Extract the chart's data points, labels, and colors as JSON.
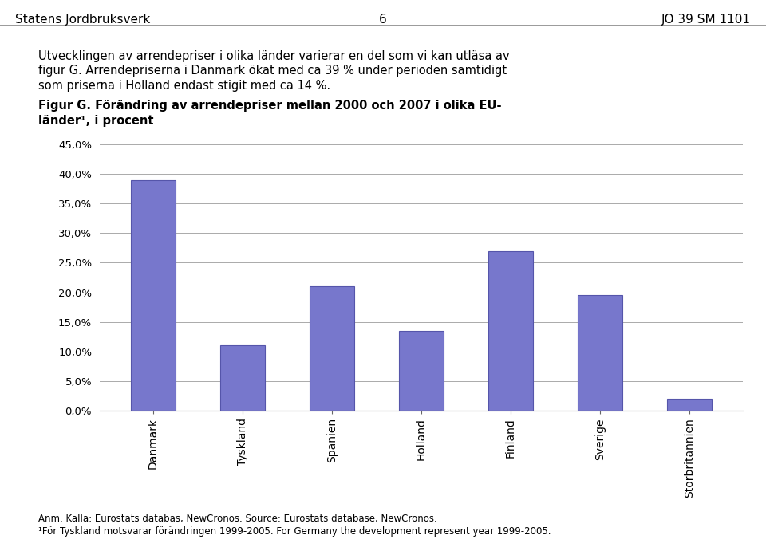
{
  "categories": [
    "Danmark",
    "Tyskland",
    "Spanien",
    "Holland",
    "Finland",
    "Sverige",
    "Storbritannien"
  ],
  "values": [
    0.39,
    0.11,
    0.21,
    0.135,
    0.27,
    0.195,
    0.02
  ],
  "bar_color": "#7777cc",
  "bar_edgecolor": "#5555aa",
  "ylim": [
    0,
    0.45
  ],
  "yticks": [
    0.0,
    0.05,
    0.1,
    0.15,
    0.2,
    0.25,
    0.3,
    0.35,
    0.4,
    0.45
  ],
  "ytick_labels": [
    "0,0%",
    "5,0%",
    "10,0%",
    "15,0%",
    "20,0%",
    "25,0%",
    "30,0%",
    "35,0%",
    "40,0%",
    "45,0%"
  ],
  "header_left": "Statens Jordbruksverk",
  "header_center": "6",
  "header_right": "JO 39 SM 1101",
  "body_text_line1": "Utvecklingen av arrendepriser i olika länder varierar en del som vi kan utläsa av",
  "body_text_line2": "figur G. Arrendepriserna i Danmark ökat med ca 39 % under perioden samtidigt",
  "body_text_line3": "som priserna i Holland endast stigit med ca 14 %.",
  "figure_title_line1": "Figur G. Förändring av arrendepriser mellan 2000 och 2007 i olika EU-",
  "figure_title_line2": "länder¹, i procent",
  "footnote_line1": "Anm. Källa: Eurostats databas, NewCronos. Source: Eurostats database, NewCronos.",
  "footnote_line2": "¹För Tyskland motsvarar förändringen 1999-2005. For Germany the development represent year 1999-2005.",
  "bg_color": "#ffffff",
  "grid_color": "#aaaaaa",
  "text_color": "#000000",
  "bar_width": 0.5
}
